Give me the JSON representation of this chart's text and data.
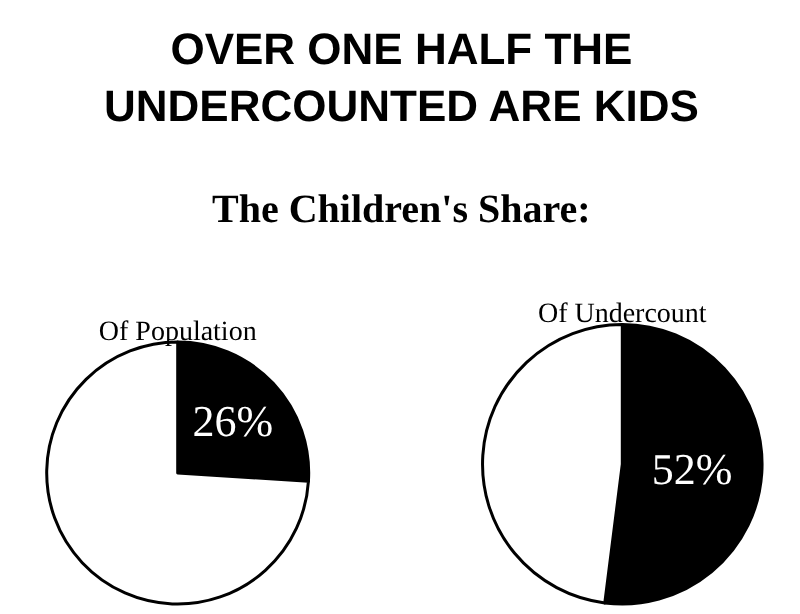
{
  "chart_data": [
    {
      "type": "pie",
      "title": "Of Population",
      "annotations": [
        "OVER ONE HALF THE\nUNDERCOUNTED ARE KIDS",
        "The Children's Share:"
      ],
      "categories": [
        null,
        null
      ],
      "values": [
        26,
        74
      ],
      "colors": [
        "#000000",
        "#ffffff"
      ],
      "value_labels": [
        "26%",
        null
      ],
      "legend": false
    },
    {
      "type": "pie",
      "title": "Of Undercount",
      "categories": [
        null,
        null
      ],
      "values": [
        52,
        48
      ],
      "colors": [
        "#000000",
        "#ffffff"
      ],
      "value_labels": [
        "52%",
        null
      ],
      "legend": false
    }
  ]
}
